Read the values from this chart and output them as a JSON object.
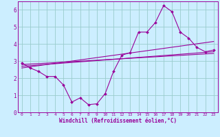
{
  "xlabel": "Windchill (Refroidissement éolien,°C)",
  "bg_color": "#cceeff",
  "line_color": "#990099",
  "grid_color": "#99cccc",
  "xlim": [
    -0.5,
    23.5
  ],
  "ylim": [
    0,
    6.5
  ],
  "xticks": [
    0,
    1,
    2,
    3,
    4,
    5,
    6,
    7,
    8,
    9,
    10,
    11,
    12,
    13,
    14,
    15,
    16,
    17,
    18,
    19,
    20,
    21,
    22,
    23
  ],
  "yticks": [
    0,
    1,
    2,
    3,
    4,
    5,
    6
  ],
  "main_line_x": [
    0,
    1,
    2,
    3,
    4,
    5,
    6,
    7,
    8,
    9,
    10,
    11,
    12,
    13,
    14,
    15,
    16,
    17,
    18,
    19,
    20,
    21,
    22,
    23
  ],
  "main_line_y": [
    2.9,
    2.6,
    2.4,
    2.1,
    2.1,
    1.6,
    0.6,
    0.85,
    0.45,
    0.5,
    1.1,
    2.4,
    3.35,
    3.5,
    4.7,
    4.7,
    5.25,
    6.25,
    5.9,
    4.7,
    4.35,
    3.8,
    3.55,
    3.65
  ],
  "reg_line1": [
    [
      0,
      23
    ],
    [
      2.6,
      4.15
    ]
  ],
  "reg_line2": [
    [
      0,
      23
    ],
    [
      2.7,
      3.55
    ]
  ],
  "reg_line3": [
    [
      0,
      23
    ],
    [
      2.8,
      3.45
    ]
  ]
}
